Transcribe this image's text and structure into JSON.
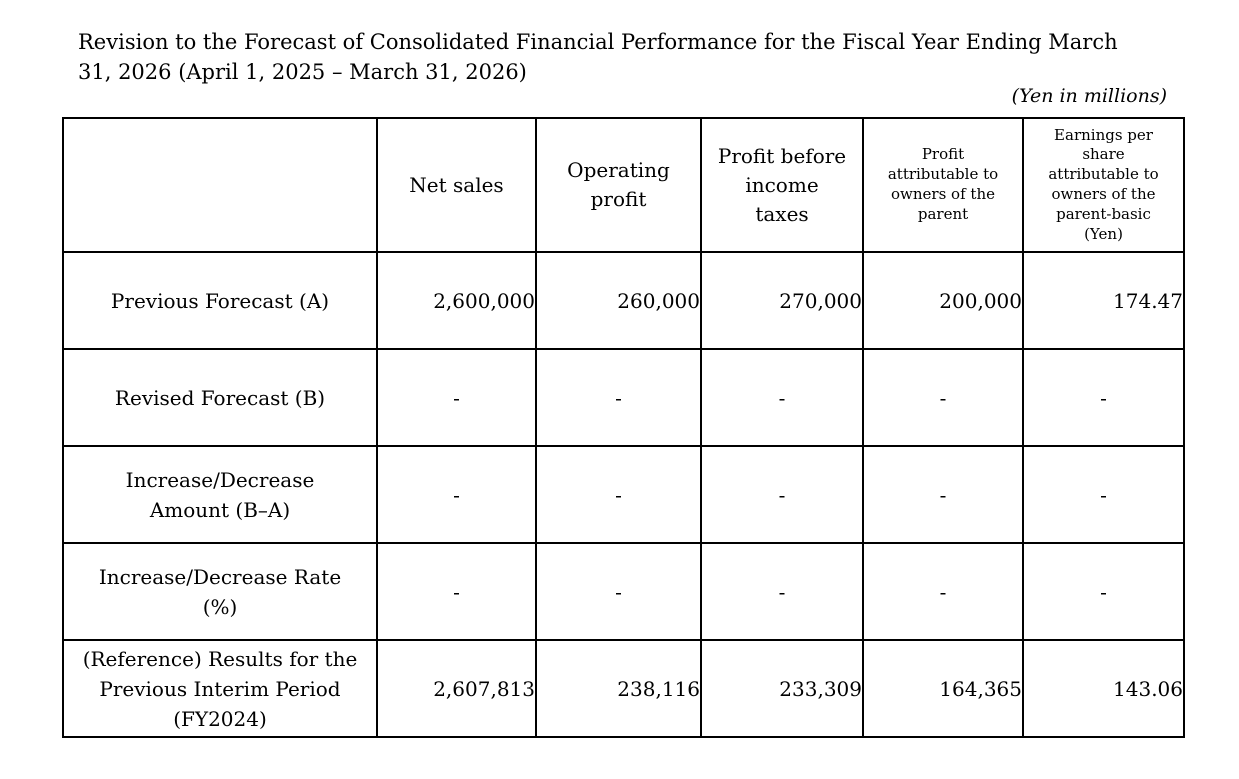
{
  "document": {
    "title": "Revision to the Forecast of Consolidated Financial Performance for the Fiscal Year Ending March\n31, 2026 (April 1, 2025 – March 31, 2026)",
    "unit_note": "(Yen in millions)"
  },
  "table": {
    "corner_label": "",
    "headers": [
      "Net sales",
      "Operating\nprofit",
      "Profit before\nincome\ntaxes",
      "Profit\nattributable to\nowners of the\nparent",
      "Earnings per\nshare\nattributable to\nowners of the\nparent-basic\n(Yen)"
    ],
    "rows": [
      {
        "label": "Previous Forecast (A)",
        "values": [
          "2,600,000",
          "260,000",
          "270,000",
          "200,000",
          "174.47"
        ]
      },
      {
        "label": "Revised Forecast (B)",
        "values": [
          "-",
          "-",
          "-",
          "-",
          "-"
        ]
      },
      {
        "label": "Increase/Decrease\nAmount (B–A)",
        "values": [
          "-",
          "-",
          "-",
          "-",
          "-"
        ]
      },
      {
        "label": "Increase/Decrease Rate\n(%)",
        "values": [
          "-",
          "-",
          "-",
          "-",
          "-"
        ]
      },
      {
        "label": "(Reference) Results for the\nPrevious Interim Period\n(FY2024)",
        "values": [
          "2,607,813",
          "238,116",
          "233,309",
          "164,365",
          "143.06"
        ]
      }
    ],
    "highlight_color": "#a9a9a9"
  }
}
